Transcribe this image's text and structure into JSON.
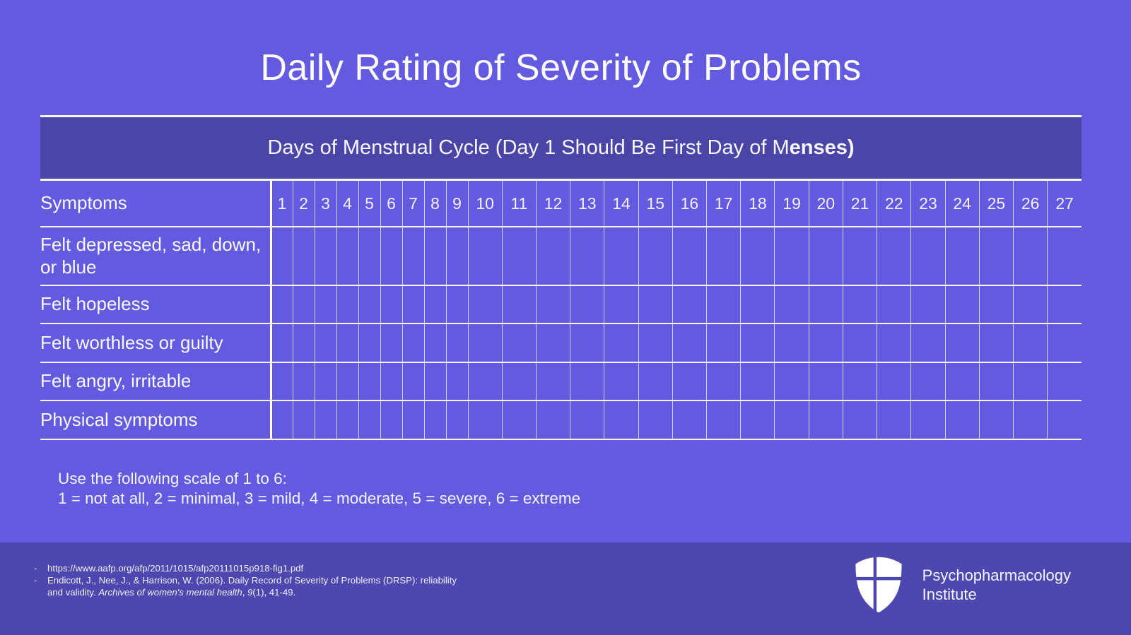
{
  "slide": {
    "title": "Daily Rating of Severity of Problems"
  },
  "table": {
    "band_text_regular": "Days of Menstrual Cycle (Day 1 Should Be First Day of M",
    "band_text_bold": "enses)",
    "symptoms_header": "Symptoms",
    "days": [
      "1",
      "2",
      "3",
      "4",
      "5",
      "6",
      "7",
      "8",
      "9",
      "10",
      "11",
      "12",
      "13",
      "14",
      "15",
      "16",
      "17",
      "18",
      "19",
      "20",
      "21",
      "22",
      "23",
      "24",
      "25",
      "26",
      "27"
    ],
    "rows": [
      "Felt depressed, sad, down, or blue",
      "Felt hopeless",
      "Felt worthless or guilty",
      "Felt angry, irritable",
      "Physical symptoms"
    ]
  },
  "scale_note": {
    "line1": "Use the following scale of 1 to 6:",
    "line2": "1 = not at all, 2 = minimal, 3 = mild, 4 = moderate, 5 = severe, 6 = extreme"
  },
  "footer": {
    "citations": [
      {
        "segments": [
          {
            "text": "https://www.aafp.org/afp/2011/1015/afp20111015p918-fig1.pdf",
            "italic": false
          }
        ]
      },
      {
        "segments": [
          {
            "text": "Endicott, J., Nee, J., & Harrison, W. (2006). Daily Record of Severity of Problems (DRSP): reliability and validity. ",
            "italic": false
          },
          {
            "text": "Archives of women's mental health",
            "italic": true
          },
          {
            "text": ", ",
            "italic": false
          },
          {
            "text": "9",
            "italic": true
          },
          {
            "text": "(1), 41-49.",
            "italic": false
          }
        ]
      }
    ],
    "logo": {
      "line1": "Psychopharmacology",
      "line2": "Institute",
      "icon": "shield-cross-icon"
    }
  },
  "colors": {
    "background": "#645AE0",
    "band": "#4B45A8",
    "footer": "#4E47B0",
    "grid_line": "#FFFFFF"
  }
}
